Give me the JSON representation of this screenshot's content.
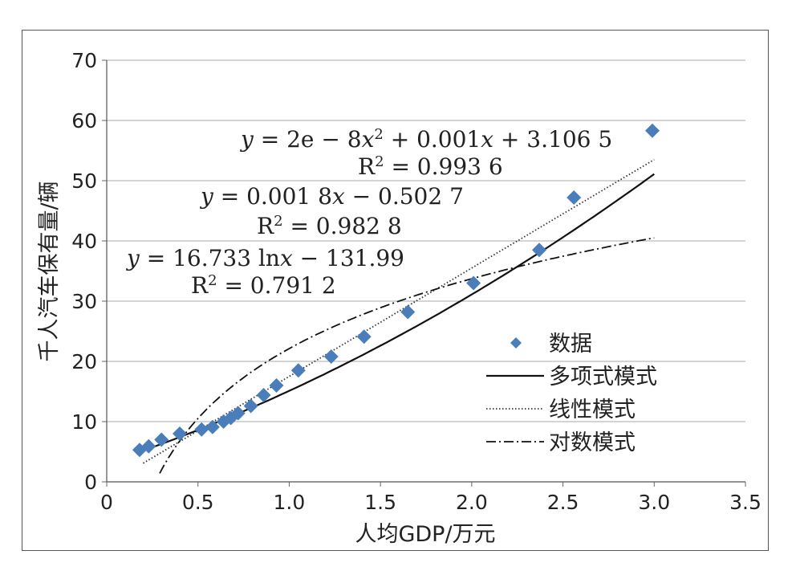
{
  "chart_data": {
    "type": "scatter",
    "xlabel": "人均GDP/万元",
    "ylabel": "千人汽车保有量/辆",
    "xlim": [
      0,
      3.5
    ],
    "ylim": [
      0,
      70
    ],
    "xticks": [
      "0",
      "0.5",
      "1.0",
      "1.5",
      "2.0",
      "2.5",
      "3.0",
      "3.5"
    ],
    "yticks": [
      "0",
      "10",
      "20",
      "30",
      "40",
      "50",
      "60",
      "70"
    ],
    "grid": "horizontal",
    "legend_position": "right",
    "series": [
      {
        "name": "数据",
        "kind": "points",
        "marker": "diamond",
        "color": "#4a7ebb",
        "x": [
          0.18,
          0.23,
          0.3,
          0.4,
          0.52,
          0.58,
          0.64,
          0.68,
          0.72,
          0.79,
          0.86,
          0.93,
          1.05,
          1.23,
          1.41,
          1.65,
          2.01,
          2.37,
          2.56,
          2.99
        ],
        "y": [
          5.3,
          5.9,
          7.0,
          8.0,
          8.7,
          9.1,
          10.0,
          10.6,
          11.4,
          12.6,
          14.4,
          16.0,
          18.5,
          20.8,
          24.1,
          28.2,
          33.0,
          38.5,
          47.2,
          58.3
        ]
      },
      {
        "name": "多项式模式",
        "kind": "curve",
        "style": "solid",
        "color": "#111111",
        "model": "poly",
        "domain": [
          0.18,
          3.0
        ]
      },
      {
        "name": "线性模式",
        "kind": "curve",
        "style": "dotted",
        "color": "#333333",
        "model": "linear",
        "domain": [
          0.2,
          3.0
        ]
      },
      {
        "name": "对数模式",
        "kind": "curve",
        "style": "dashdot",
        "color": "#111111",
        "model": "log",
        "domain": [
          0.29,
          3.0
        ]
      }
    ],
    "annotations": {
      "poly": {
        "eq_pre": "y",
        "eq_body": " = 2e − 8",
        "eq_var": "x",
        "eq_sup": "2",
        "eq_rest": " + 0.001",
        "eq_var2": "x",
        "eq_end": " + 3.106 5",
        "r2_label": "R",
        "r2_sup": "2",
        "r2_value": " = 0.993 6"
      },
      "linear": {
        "eq_pre": "y",
        "eq_body": " = 0.001 8",
        "eq_var": "x",
        "eq_end": " − 0.502 7",
        "r2_label": "R",
        "r2_sup": "2",
        "r2_value": " = 0.982 8"
      },
      "log": {
        "eq_pre": "y",
        "eq_body": " = 16.733 ln",
        "eq_var": "x",
        "eq_end": " − 131.99",
        "r2_label": "R",
        "r2_sup": "2",
        "r2_value": " = 0.791 2"
      }
    }
  }
}
